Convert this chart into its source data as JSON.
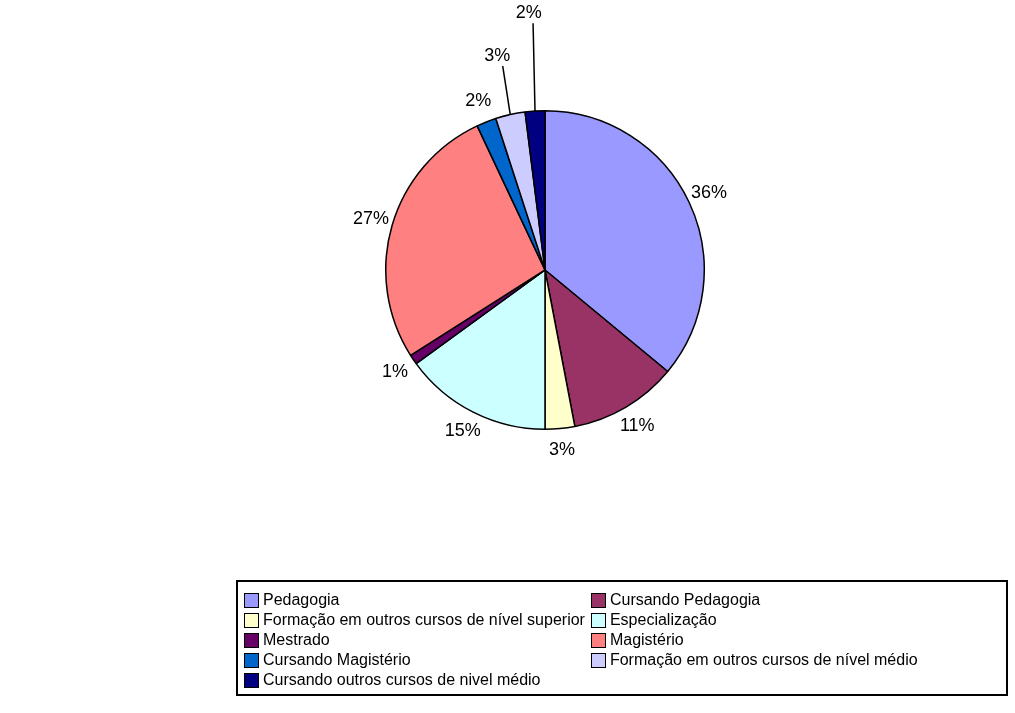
{
  "chart_data": {
    "type": "pie",
    "categories": [
      "Pedagogia",
      "Cursando Pedagogia",
      "Formação em outros cursos de nível superior",
      "Especialização",
      "Mestrado",
      "Magistério",
      "Cursando Magistério",
      "Formação em outros cursos de nível médio",
      "Cursando outros cursos de nivel médio"
    ],
    "values": [
      36,
      11,
      3,
      15,
      1,
      27,
      2,
      3,
      2
    ],
    "colors": [
      "#9999ff",
      "#993366",
      "#ffffcc",
      "#ccffff",
      "#660066",
      "#ff8080",
      "#0066cc",
      "#ccccff",
      "#000080"
    ],
    "value_labels": [
      "36%",
      "11%",
      "3%",
      "15%",
      "1%",
      "27%",
      "2%",
      "3%",
      "2%"
    ],
    "legend": "bottom"
  }
}
